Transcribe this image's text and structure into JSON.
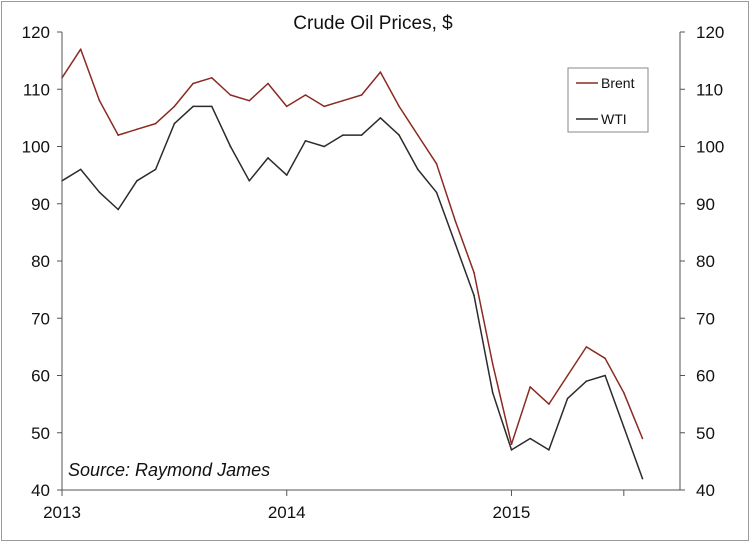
{
  "chart_data": {
    "type": "line",
    "title": "Crude Oil Prices, $",
    "annotation": "Source: Raymond James",
    "xlabel": "",
    "ylabel": "",
    "x_ticks": [
      "2013",
      "2014",
      "2015"
    ],
    "y_ticks": [
      "40",
      "50",
      "60",
      "70",
      "80",
      "90",
      "100",
      "110",
      "120"
    ],
    "y_ticks_right": [
      "40",
      "50",
      "60",
      "70",
      "80",
      "90",
      "100",
      "110",
      "120"
    ],
    "xlim": [
      "2013-01",
      "2015-10"
    ],
    "ylim": [
      40,
      120
    ],
    "legend": "top-right",
    "grid": false,
    "x": [
      "2013-01",
      "2013-02",
      "2013-03",
      "2013-04",
      "2013-05",
      "2013-06",
      "2013-07",
      "2013-08",
      "2013-09",
      "2013-10",
      "2013-11",
      "2013-12",
      "2014-01",
      "2014-02",
      "2014-03",
      "2014-04",
      "2014-05",
      "2014-06",
      "2014-07",
      "2014-08",
      "2014-09",
      "2014-10",
      "2014-11",
      "2014-12",
      "2015-01",
      "2015-02",
      "2015-03",
      "2015-04",
      "2015-05",
      "2015-06",
      "2015-07",
      "2015-08"
    ],
    "series": [
      {
        "name": "Brent",
        "color": "#8b2a22",
        "values": [
          112,
          117,
          108,
          102,
          103,
          104,
          107,
          111,
          112,
          109,
          108,
          111,
          107,
          109,
          107,
          108,
          109,
          113,
          107,
          102,
          97,
          87,
          78,
          62,
          48,
          58,
          55,
          60,
          65,
          63,
          57,
          49
        ]
      },
      {
        "name": "WTI",
        "color": "#2b2b2b",
        "values": [
          94,
          96,
          92,
          89,
          94,
          96,
          104,
          107,
          107,
          100,
          94,
          98,
          95,
          101,
          100,
          102,
          102,
          105,
          102,
          96,
          92,
          83,
          74,
          57,
          47,
          49,
          47,
          56,
          59,
          60,
          51,
          42
        ]
      }
    ]
  }
}
